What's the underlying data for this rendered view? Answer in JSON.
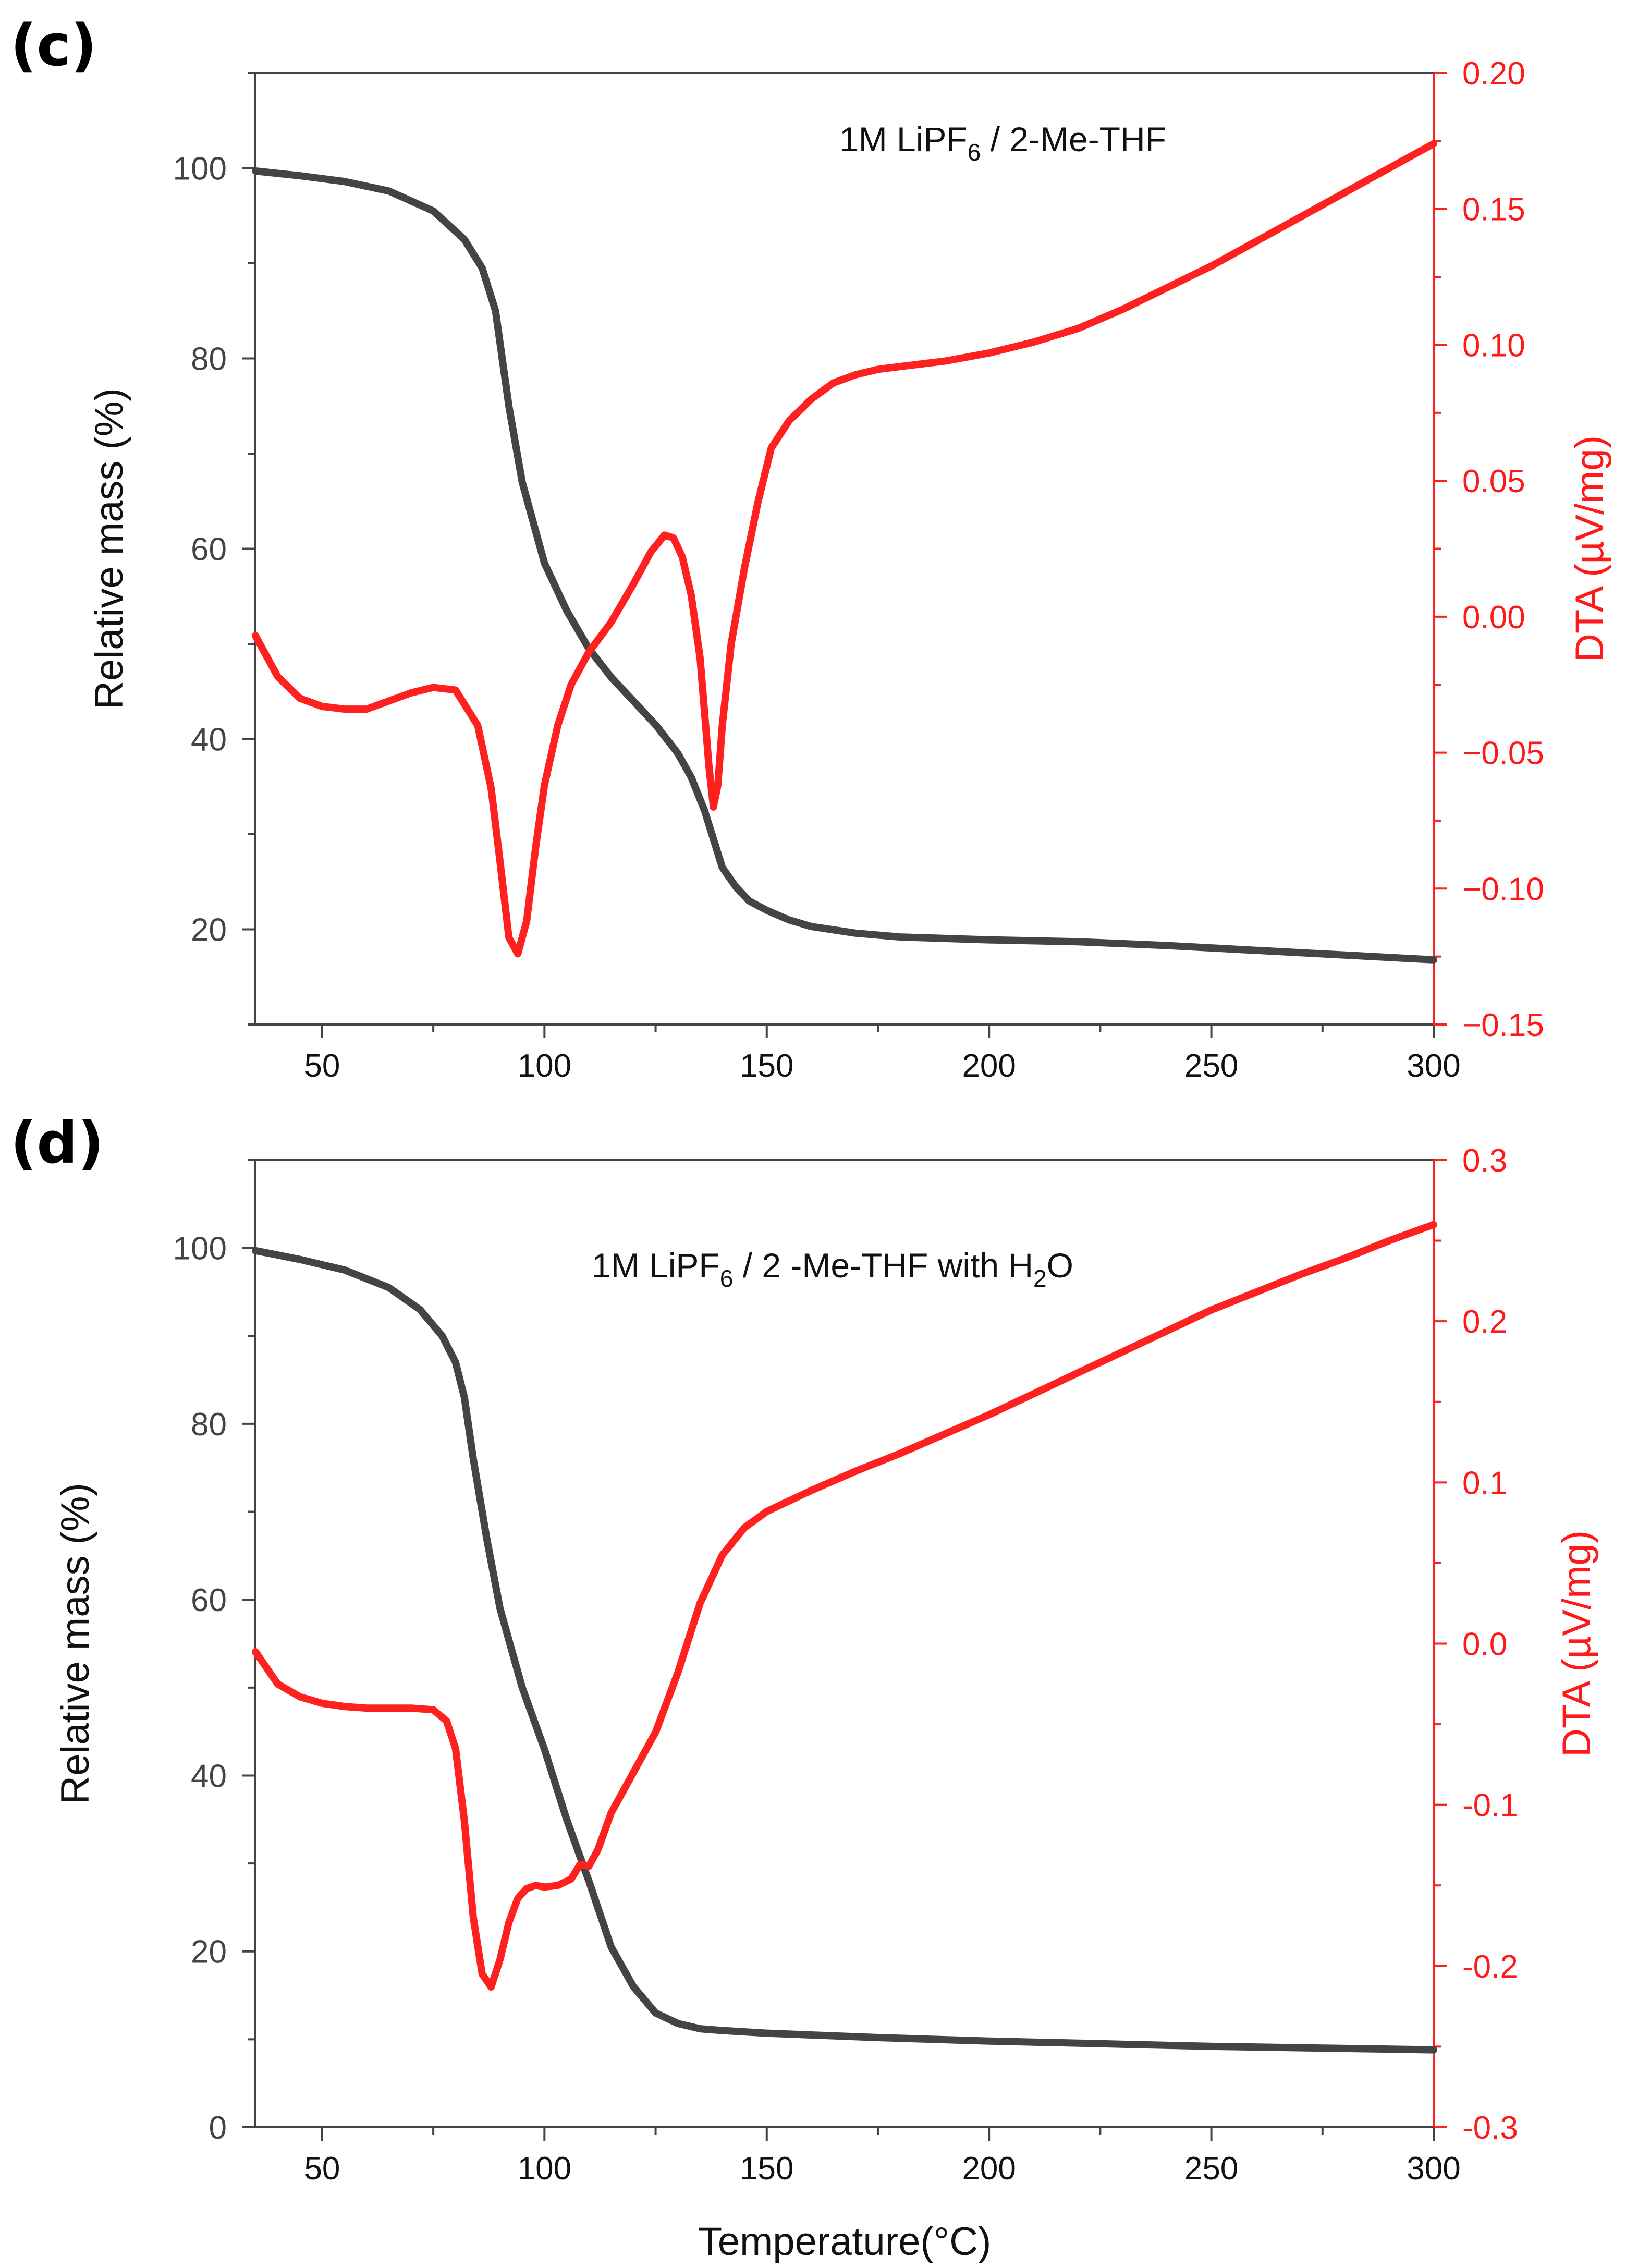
{
  "chart_data": [
    {
      "panel": "(c)",
      "type": "line",
      "annotation": {
        "prefix": "1M LiPF",
        "sub": "6",
        "suffix": " / 2-Me-THF"
      },
      "xlabel": "",
      "ylabel": "Relative mass (%)",
      "y2label": "DTA (µV/mg)",
      "xlim": [
        35,
        300
      ],
      "xticks": [
        50,
        100,
        150,
        200,
        250,
        300
      ],
      "ylim": [
        10,
        110
      ],
      "yticks": [
        20,
        40,
        60,
        80,
        100
      ],
      "y2lim": [
        -0.15,
        0.2
      ],
      "y2ticks": [
        "0.20",
        "0.15",
        "0.10",
        "0.05",
        "0.00",
        "−0.05",
        "−0.10",
        "−0.15"
      ],
      "y2tickvals": [
        0.2,
        0.15,
        0.1,
        0.05,
        0.0,
        -0.05,
        -0.1,
        -0.15
      ],
      "series": [
        {
          "axis": "left",
          "color": "#444444",
          "x": [
            35,
            45,
            55,
            65,
            75,
            82,
            86,
            89,
            92,
            95,
            100,
            105,
            110,
            115,
            120,
            125,
            130,
            133,
            136,
            138,
            140,
            143,
            146,
            150,
            155,
            160,
            170,
            180,
            200,
            220,
            240,
            260,
            280,
            300
          ],
          "y": [
            99.7,
            99.2,
            98.6,
            97.6,
            95.5,
            92.5,
            89.5,
            85,
            75,
            67,
            58.5,
            53.5,
            49.5,
            46.5,
            44,
            41.5,
            38.5,
            36,
            32.5,
            29.5,
            26.5,
            24.5,
            23,
            22,
            21,
            20.3,
            19.6,
            19.2,
            18.9,
            18.7,
            18.3,
            17.8,
            17.3,
            16.8
          ]
        },
        {
          "axis": "right",
          "color": "#ff2020",
          "x": [
            35,
            40,
            45,
            50,
            55,
            60,
            65,
            70,
            75,
            80,
            85,
            88,
            90,
            92,
            94,
            96,
            98,
            100,
            103,
            106,
            110,
            115,
            120,
            124,
            127,
            129,
            131,
            133,
            135,
            136,
            137,
            138,
            139,
            140,
            142,
            145,
            148,
            151,
            155,
            160,
            165,
            170,
            175,
            180,
            190,
            200,
            210,
            220,
            230,
            240,
            250,
            260,
            270,
            280,
            290,
            300
          ],
          "y": [
            -0.007,
            -0.022,
            -0.03,
            -0.033,
            -0.034,
            -0.034,
            -0.031,
            -0.028,
            -0.026,
            -0.027,
            -0.04,
            -0.063,
            -0.09,
            -0.118,
            -0.124,
            -0.112,
            -0.085,
            -0.062,
            -0.04,
            -0.025,
            -0.013,
            -0.002,
            0.012,
            0.024,
            0.03,
            0.029,
            0.022,
            0.008,
            -0.015,
            -0.035,
            -0.055,
            -0.07,
            -0.062,
            -0.04,
            -0.01,
            0.018,
            0.042,
            0.062,
            0.072,
            0.08,
            0.086,
            0.089,
            0.091,
            0.092,
            0.094,
            0.097,
            0.101,
            0.106,
            0.113,
            0.121,
            0.129,
            0.138,
            0.147,
            0.156,
            0.165,
            0.174
          ]
        }
      ]
    },
    {
      "panel": "(d)",
      "type": "line",
      "annotation": {
        "prefix": "1M LiPF",
        "sub": "6",
        "suffix": " / 2 -Me-THF with H",
        "sub2": "2",
        "suffix2": "O"
      },
      "xlabel": "Temperature(°C)",
      "ylabel": "Relative mass (%)",
      "y2label": "DTA (µV/mg)",
      "xlim": [
        35,
        300
      ],
      "xticks": [
        50,
        100,
        150,
        200,
        250,
        300
      ],
      "ylim": [
        0,
        110
      ],
      "yticks": [
        0,
        20,
        40,
        60,
        80,
        100
      ],
      "y2lim": [
        -0.3,
        0.3
      ],
      "y2ticks": [
        "0.3",
        "0.2",
        "0.1",
        "0.0",
        "-0.1",
        "-0.2",
        "-0.3"
      ],
      "y2tickvals": [
        0.3,
        0.2,
        0.1,
        0.0,
        -0.1,
        -0.2,
        -0.3
      ],
      "series": [
        {
          "axis": "left",
          "color": "#444444",
          "x": [
            35,
            45,
            55,
            65,
            72,
            77,
            80,
            82,
            84,
            87,
            90,
            95,
            100,
            105,
            110,
            115,
            120,
            125,
            130,
            135,
            140,
            150,
            175,
            200,
            225,
            250,
            275,
            300
          ],
          "y": [
            99.7,
            98.7,
            97.5,
            95.5,
            93,
            90,
            87,
            83,
            76,
            67,
            59,
            50,
            43,
            35,
            28,
            20.5,
            16,
            13,
            11.8,
            11.2,
            11.0,
            10.7,
            10.2,
            9.8,
            9.5,
            9.2,
            9.0,
            8.8
          ]
        },
        {
          "axis": "right",
          "color": "#ff2020",
          "x": [
            35,
            40,
            45,
            50,
            55,
            60,
            65,
            70,
            75,
            78,
            80,
            82,
            84,
            86,
            88,
            90,
            92,
            94,
            96,
            98,
            100,
            103,
            106,
            108,
            110,
            112,
            115,
            120,
            125,
            130,
            135,
            140,
            145,
            150,
            160,
            170,
            180,
            190,
            200,
            210,
            220,
            230,
            240,
            250,
            260,
            270,
            280,
            290,
            300
          ],
          "y": [
            -0.005,
            -0.025,
            -0.033,
            -0.037,
            -0.039,
            -0.04,
            -0.04,
            -0.04,
            -0.041,
            -0.048,
            -0.065,
            -0.11,
            -0.17,
            -0.205,
            -0.213,
            -0.196,
            -0.173,
            -0.158,
            -0.152,
            -0.15,
            -0.151,
            -0.15,
            -0.146,
            -0.137,
            -0.138,
            -0.128,
            -0.105,
            -0.08,
            -0.055,
            -0.018,
            0.025,
            0.055,
            0.072,
            0.082,
            0.095,
            0.107,
            0.118,
            0.13,
            0.142,
            0.155,
            0.168,
            0.181,
            0.194,
            0.207,
            0.218,
            0.229,
            0.239,
            0.25,
            0.26
          ]
        }
      ]
    }
  ]
}
